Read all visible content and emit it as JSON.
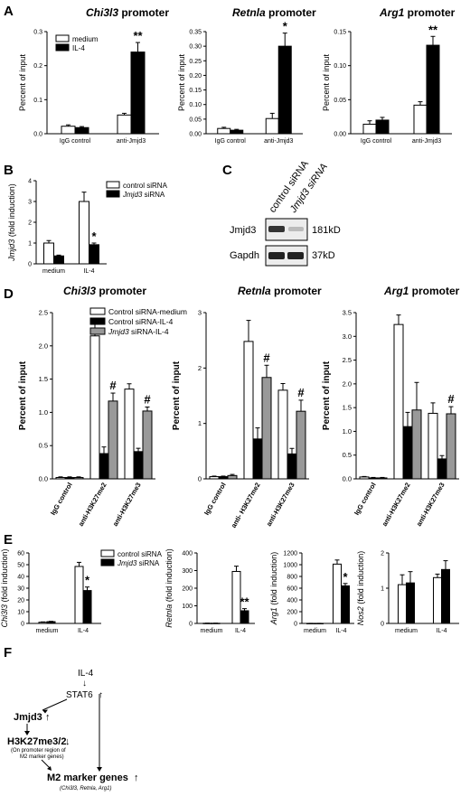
{
  "panel_labels": {
    "A": "A",
    "B": "B",
    "C": "C",
    "D": "D",
    "E": "E",
    "F": "F"
  },
  "colors": {
    "white": "#ffffff",
    "black": "#000000",
    "gray": "#999999",
    "axis": "#000000"
  },
  "chart_data": [
    {
      "id": "A1",
      "panel": "A",
      "type": "bar",
      "title": "Chi3l3",
      "title_rest": " promoter",
      "title_italic": true,
      "ylabel": "Percent of input",
      "ylim": [
        0,
        0.3
      ],
      "yticks": [
        "0.0",
        "0.1",
        "0.2",
        "0.3"
      ],
      "ytick_values": [
        0,
        0.1,
        0.2,
        0.3
      ],
      "categories": [
        "IgG control",
        "anti-Jmjd3"
      ],
      "series": [
        {
          "name": "medium",
          "color": "#ffffff",
          "values": [
            0.022,
            0.055
          ],
          "errors": [
            0.004,
            0.005
          ]
        },
        {
          "name": "IL-4",
          "color": "#000000",
          "values": [
            0.018,
            0.24
          ],
          "errors": [
            0.003,
            0.028
          ]
        }
      ],
      "annotations": [
        {
          "series": 1,
          "cat": 1,
          "text": "**"
        }
      ],
      "legend": true
    },
    {
      "id": "A2",
      "panel": "A",
      "type": "bar",
      "title": "Retnla",
      "title_rest": " promoter",
      "title_italic": true,
      "ylabel": "Percent of input",
      "ylim": [
        0,
        0.35
      ],
      "yticks": [
        "0.00",
        "0.05",
        "0.10",
        "0.15",
        "0.20",
        "0.25",
        "0.30",
        "0.35"
      ],
      "ytick_values": [
        0,
        0.05,
        0.1,
        0.15,
        0.2,
        0.25,
        0.3,
        0.35
      ],
      "categories": [
        "IgG control",
        "anti-Jmjd3"
      ],
      "series": [
        {
          "name": "medium",
          "color": "#ffffff",
          "values": [
            0.018,
            0.052
          ],
          "errors": [
            0.004,
            0.018
          ]
        },
        {
          "name": "IL-4",
          "color": "#000000",
          "values": [
            0.012,
            0.3
          ],
          "errors": [
            0.003,
            0.045
          ]
        }
      ],
      "annotations": [
        {
          "series": 1,
          "cat": 1,
          "text": "*"
        }
      ]
    },
    {
      "id": "A3",
      "panel": "A",
      "type": "bar",
      "title": "Arg1",
      "title_rest": " promoter",
      "title_italic": true,
      "ylabel": "Percent of input",
      "ylim": [
        0,
        0.15
      ],
      "yticks": [
        "0.00",
        "0.05",
        "0.10",
        "0.15"
      ],
      "ytick_values": [
        0,
        0.05,
        0.1,
        0.15
      ],
      "categories": [
        "IgG control",
        "anti-Jmjd3"
      ],
      "series": [
        {
          "name": "medium",
          "color": "#ffffff",
          "values": [
            0.014,
            0.042
          ],
          "errors": [
            0.005,
            0.005
          ]
        },
        {
          "name": "IL-4",
          "color": "#000000",
          "values": [
            0.02,
            0.13
          ],
          "errors": [
            0.004,
            0.013
          ]
        }
      ],
      "annotations": [
        {
          "series": 1,
          "cat": 1,
          "text": "**"
        }
      ]
    },
    {
      "id": "B",
      "panel": "B",
      "type": "bar",
      "title": "",
      "ylabel": "Jmjd3",
      "ylabel_rest": " (fold induction)",
      "ylim": [
        0,
        4
      ],
      "yticks": [
        "0",
        "1",
        "2",
        "3",
        "4"
      ],
      "ytick_values": [
        0,
        1,
        2,
        3,
        4
      ],
      "categories": [
        "medium",
        "IL-4"
      ],
      "series": [
        {
          "name": "control siRNA",
          "color": "#ffffff",
          "values": [
            1.0,
            3.0
          ],
          "errors": [
            0.12,
            0.45
          ]
        },
        {
          "name": "Jmjd3 siRNA",
          "color": "#000000",
          "values": [
            0.38,
            0.92
          ],
          "errors": [
            0.04,
            0.08
          ]
        }
      ],
      "annotations": [
        {
          "series": 1,
          "cat": 1,
          "text": "*"
        }
      ],
      "legend": true
    },
    {
      "id": "D1",
      "panel": "D",
      "type": "bar",
      "title": "Chi3l3",
      "title_rest": " promoter",
      "title_italic": true,
      "ylabel": "Percent of input",
      "ylim": [
        0,
        2.5
      ],
      "yticks": [
        "0.0",
        "0.5",
        "1.0",
        "1.5",
        "2.0",
        "2.5"
      ],
      "ytick_values": [
        0,
        0.5,
        1,
        1.5,
        2,
        2.5
      ],
      "categories": [
        "IgG control",
        "anti-H3K27me2",
        "anti-H3K27me3"
      ],
      "series": [
        {
          "name": "Control siRNA-medium",
          "color": "#ffffff",
          "values": [
            0.02,
            2.15,
            1.35
          ],
          "errors": [
            0.01,
            0.2,
            0.08
          ]
        },
        {
          "name": "Control siRNA-IL-4",
          "color": "#000000",
          "values": [
            0.02,
            0.38,
            0.41
          ],
          "errors": [
            0.01,
            0.1,
            0.05
          ]
        },
        {
          "name": "Jmjd3 siRNA-IL-4",
          "color": "#999999",
          "values": [
            0.02,
            1.17,
            1.02
          ],
          "errors": [
            0.01,
            0.12,
            0.06
          ]
        }
      ],
      "annotations": [
        {
          "series": 2,
          "cat": 1,
          "text": "#"
        },
        {
          "series": 2,
          "cat": 2,
          "text": "#"
        }
      ],
      "legend": true
    },
    {
      "id": "D2",
      "panel": "D",
      "type": "bar",
      "title": "Retnla",
      "title_rest": " promoter",
      "title_italic": true,
      "ylabel": "Percent of input",
      "ylim": [
        0,
        3
      ],
      "yticks": [
        "0",
        "1",
        "2",
        "3"
      ],
      "ytick_values": [
        0,
        1,
        2,
        3
      ],
      "categories": [
        "IgG control",
        "anti- H3K27me2",
        "anti-H3K27me3"
      ],
      "series": [
        {
          "name": "Control siRNA-medium",
          "color": "#ffffff",
          "values": [
            0.04,
            2.48,
            1.6
          ],
          "errors": [
            0.01,
            0.38,
            0.12
          ]
        },
        {
          "name": "Control siRNA-IL-4",
          "color": "#000000",
          "values": [
            0.04,
            0.72,
            0.45
          ],
          "errors": [
            0.01,
            0.2,
            0.1
          ]
        },
        {
          "name": "Jmjd3 siRNA-IL-4",
          "color": "#999999",
          "values": [
            0.06,
            1.83,
            1.22
          ],
          "errors": [
            0.02,
            0.22,
            0.2
          ]
        }
      ],
      "annotations": [
        {
          "series": 2,
          "cat": 1,
          "text": "#"
        },
        {
          "series": 2,
          "cat": 2,
          "text": "#"
        }
      ]
    },
    {
      "id": "D3",
      "panel": "D",
      "type": "bar",
      "title": "Arg1",
      "title_rest": " promoter",
      "title_italic": true,
      "ylabel": "Percent of input",
      "ylim": [
        0,
        3.5
      ],
      "yticks": [
        "0.0",
        "0.5",
        "1.0",
        "1.5",
        "2.0",
        "2.5",
        "3.0",
        "3.5"
      ],
      "ytick_values": [
        0,
        0.5,
        1,
        1.5,
        2,
        2.5,
        3,
        3.5
      ],
      "categories": [
        "IgG control",
        "anti-H3K27me2",
        "anti-H3K27me3"
      ],
      "series": [
        {
          "name": "Control siRNA-medium",
          "color": "#ffffff",
          "values": [
            0.04,
            3.25,
            1.38
          ],
          "errors": [
            0.01,
            0.2,
            0.22
          ]
        },
        {
          "name": "Control siRNA-IL-4",
          "color": "#000000",
          "values": [
            0.02,
            1.1,
            0.42
          ],
          "errors": [
            0.01,
            0.3,
            0.07
          ]
        },
        {
          "name": "Jmjd3 siRNA-IL-4",
          "color": "#999999",
          "values": [
            0.02,
            1.45,
            1.37
          ],
          "errors": [
            0.01,
            0.58,
            0.15
          ]
        }
      ],
      "annotations": [
        {
          "series": 2,
          "cat": 2,
          "text": "#"
        }
      ]
    },
    {
      "id": "E1",
      "panel": "E",
      "type": "bar",
      "title": "",
      "ylabel": "Chi3l3",
      "ylabel_rest": " (fold induction)",
      "ylim": [
        0,
        60
      ],
      "yticks": [
        "0",
        "10",
        "20",
        "30",
        "40",
        "50",
        "60"
      ],
      "ytick_values": [
        0,
        10,
        20,
        30,
        40,
        50,
        60
      ],
      "categories": [
        "medium",
        "IL-4"
      ],
      "series": [
        {
          "name": "control siRNA",
          "color": "#ffffff",
          "values": [
            1.0,
            48.5
          ],
          "errors": [
            0.3,
            3.5
          ]
        },
        {
          "name": "Jmjd3 siRNA",
          "color": "#000000",
          "values": [
            1.5,
            28
          ],
          "errors": [
            0.3,
            3.0
          ]
        }
      ],
      "annotations": [
        {
          "series": 1,
          "cat": 1,
          "text": "*"
        }
      ],
      "legend": true
    },
    {
      "id": "E2",
      "panel": "E",
      "type": "bar",
      "title": "",
      "ylabel": "Retnla",
      "ylabel_rest": " (fold induction)",
      "ylim": [
        0,
        400
      ],
      "yticks": [
        "0",
        "100",
        "200",
        "300",
        "400"
      ],
      "ytick_values": [
        0,
        100,
        200,
        300,
        400
      ],
      "categories": [
        "medium",
        "IL-4"
      ],
      "series": [
        {
          "name": "control siRNA",
          "color": "#ffffff",
          "values": [
            1,
            295
          ],
          "errors": [
            0.5,
            30
          ]
        },
        {
          "name": "Jmjd3 siRNA",
          "color": "#000000",
          "values": [
            1,
            72
          ],
          "errors": [
            0.5,
            12
          ]
        }
      ],
      "annotations": [
        {
          "series": 1,
          "cat": 1,
          "text": "**"
        }
      ]
    },
    {
      "id": "E3",
      "panel": "E",
      "type": "bar",
      "title": "",
      "ylabel": "Arg1",
      "ylabel_rest": " (fold induction)",
      "ylim": [
        0,
        1200
      ],
      "yticks": [
        "0",
        "200",
        "400",
        "600",
        "800",
        "1000",
        "1200"
      ],
      "ytick_values": [
        0,
        200,
        400,
        600,
        800,
        1000,
        1200
      ],
      "categories": [
        "medium",
        "IL-4"
      ],
      "series": [
        {
          "name": "control siRNA",
          "color": "#ffffff",
          "values": [
            1,
            1010
          ],
          "errors": [
            0.5,
            70
          ]
        },
        {
          "name": "Jmjd3 siRNA",
          "color": "#000000",
          "values": [
            1,
            640
          ],
          "errors": [
            0.5,
            40
          ]
        }
      ],
      "annotations": [
        {
          "series": 1,
          "cat": 1,
          "text": "*"
        }
      ]
    },
    {
      "id": "E4",
      "panel": "E",
      "type": "bar",
      "title": "",
      "ylabel": "Nos2",
      "ylabel_rest": " (fold induction)",
      "ylim": [
        0,
        2
      ],
      "yticks": [
        "0",
        "1",
        "2"
      ],
      "ytick_values": [
        0,
        1,
        2
      ],
      "categories": [
        "medium",
        "IL-4"
      ],
      "series": [
        {
          "name": "control siRNA",
          "color": "#ffffff",
          "values": [
            1.1,
            1.3
          ],
          "errors": [
            0.28,
            0.1
          ]
        },
        {
          "name": "Jmjd3 siRNA",
          "color": "#000000",
          "values": [
            1.15,
            1.53
          ],
          "errors": [
            0.32,
            0.25
          ]
        }
      ],
      "annotations": []
    }
  ],
  "blot": {
    "lanes": [
      "control siRNA",
      "Jmjd3 siRNA"
    ],
    "rows": [
      {
        "protein": "Jmjd3",
        "size": "181kD"
      },
      {
        "protein": "Gapdh",
        "size": "37kD"
      }
    ]
  },
  "flow": {
    "il4": "IL-4",
    "stat6": "STAT6",
    "jmjd3": "Jmjd3",
    "h3k27": "H3K27me3/2",
    "promoter_note_1": "(On promoter region of",
    "promoter_note_2": "M2 marker genes)",
    "m2": "M2 marker genes",
    "m2_note": "(Chi3l3, Retnla, Arg1)",
    "up_arrow": "↑",
    "down_arrow": "↓"
  }
}
